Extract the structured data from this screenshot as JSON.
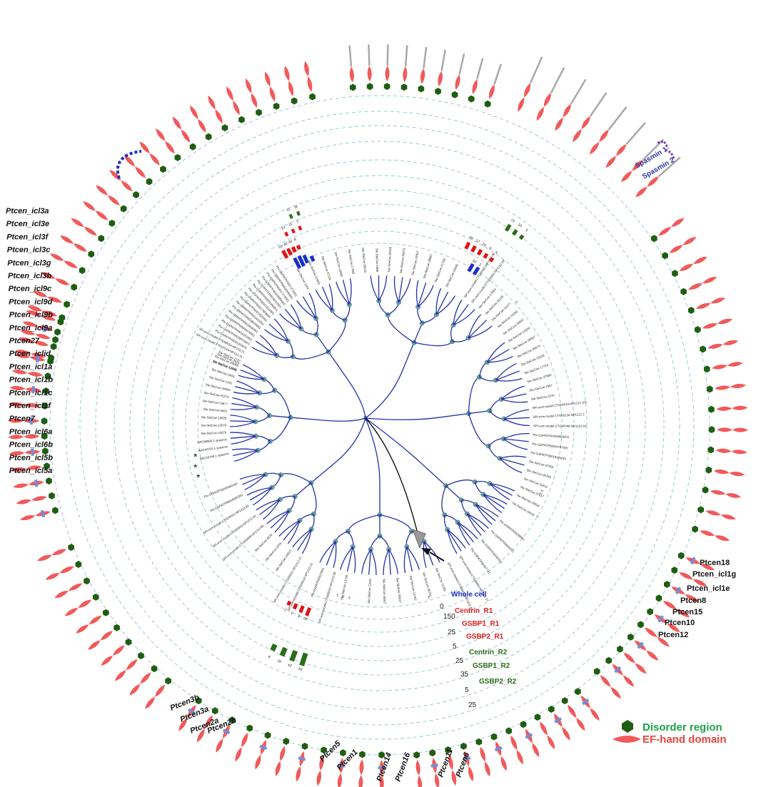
{
  "colors": {
    "tree": "#2230a8",
    "node": "#6aa3a0",
    "ef_hand": "#f15a5a",
    "disorder": "#1f5e12",
    "other_domain": "#6f8fdc",
    "track_blue": "#1c2ec9",
    "track_red": "#e01515",
    "track_green": "#2a6e18",
    "ring": "#8bb8c9",
    "label_green": "#2a8a1a",
    "label_red": "#e01c1c"
  },
  "track_labels": [
    {
      "text": "Whole cell",
      "color": "#1c2ec9"
    },
    {
      "text": "Centrin_R1",
      "color": "#e01c1c"
    },
    {
      "text": "GSBP1_R1",
      "color": "#e01c1c"
    },
    {
      "text": "GSBP2_R1",
      "color": "#e01c1c"
    },
    {
      "text": "Centrin_R2",
      "color": "#2a6e18"
    },
    {
      "text": "GSBP1_R2",
      "color": "#2a6e18"
    },
    {
      "text": "GSBP2_R2",
      "color": "#2a6e18"
    }
  ],
  "scale_numbers": [
    "0",
    "150",
    "25",
    "5",
    "25",
    "35",
    "5",
    "25"
  ],
  "gene_labels_left": [
    "Ptcen_icl3a",
    "Ptcen_icl3e",
    "Ptcen_icl3f",
    "Ptcen_icl3c",
    "Ptcen_icl3g",
    "Ptcen_icl3b",
    "Ptcen_icl9c",
    "Ptcen_icl9d",
    "Ptcen_icl9b",
    "Ptcen_icl9a",
    "Ptcen27",
    "Ptcen_iclid",
    "Ptcen_icl1a",
    "Ptcen_icl1b",
    "Ptcen_icl1c",
    "Ptcen_icl1f",
    "Ptcen7",
    "Ptcen_icl6a",
    "Ptcen_icl6b",
    "Ptcen_icl5b",
    "Ptcen_icl5a"
  ],
  "gene_labels_right": [
    "Ptcen18",
    "Ptcen_icl1g",
    "Ptcen_icl1e",
    "Ptcen8",
    "Ptcen15",
    "Ptcen10",
    "Ptcen12"
  ],
  "gene_labels_bottom": [
    "Ptcen3b",
    "Ptcen3a",
    "Ptcen2a",
    "Ptcen2b",
    "Ptcen5",
    "Ptcen1",
    "Ptcen14",
    "Ptcen16",
    "Ptcen11",
    "Ptcen6"
  ],
  "spasmin_labels": [
    "Spasmin 1",
    "Spasmin 2"
  ],
  "legend": [
    {
      "label": "Disorder region",
      "color": "#1aa34a",
      "shape": "hexagon"
    },
    {
      "label": "EF-hand domain",
      "color": "#e8453c",
      "shape": "spindle"
    }
  ],
  "track_values": {
    "whole_cell_top": [
      "1",
      "1"
    ],
    "centrin_r1_top": [
      "50",
      "40",
      "30",
      "8"
    ],
    "gsbp1_r1_top": [
      "12",
      "11",
      "2"
    ],
    "gsbp2_r1_top": [
      "2",
      "2"
    ],
    "centrin_r2_top": [
      "11",
      "11"
    ],
    "right_red": [
      "49",
      "37",
      "10",
      "8",
      "4"
    ],
    "right_green": [
      "13",
      "10",
      "5"
    ],
    "right_blue": [
      "30",
      "2"
    ],
    "bottom_red": [
      "20",
      "5",
      "3",
      "2"
    ],
    "bottom_green": [
      "34",
      "24",
      "20",
      "8"
    ],
    "bottom_numbers": [
      "2",
      "2",
      "1"
    ],
    "right_misc": [
      "1",
      "1",
      "3"
    ]
  },
  "leaf_labels": {
    "top_left": [
      "Ste-SteCoe-19998",
      "Ste-SteCoe-29066",
      "Ste-SteCoe-1737",
      "SPI-evm.model.CTG00019-NP123.16",
      "SPI-evm.model.CTG00034-NP123.21",
      "Ptx-GSPATP00021200001",
      "Ptx-GSPATP00028370001",
      "Ptx-GSPATP00016252001",
      "Ptx-GSPATP00009470001",
      "Ptx-GSPATP00020646001",
      "Ptx-GSPATP00028520001",
      "Ptx-GSPATP00022415001",
      "Ptx-GSPATP00001820001",
      "Ptx-GSPATP00017893001",
      "Ptx-GSPATP00022915001",
      "Ptx-GSPATP00026359001",
      "Ptx-GSPATP00028242001",
      "Ptx-GSPATP00015680001",
      "Ptx-GSPATP00017275001",
      "Ptx-GSPATP00032440001",
      "Ptx-GSPATP00007273001"
    ],
    "left": [
      "BAC43749.1 spasmin",
      "BAC43750.1 spasmin",
      "AAO99900.1 spasmin",
      "Ste-SteCoe-21876",
      "Ste-SteCoe-12679",
      "Ste-SteCoe-10828",
      "Ste-SteCoe-4093",
      "Ste-SteCoe-14677",
      "Ste-SteCoe-25273",
      "Ste-SteCoe-34659",
      "Ste-SteCoe-1431",
      "Ste-SteCoe-2403",
      "Ste-SteCoe-14048",
      "Ste-SteCoe-2919"
    ],
    "bottom": [
      "Ste-SteCoe-13738",
      "SPI-evm.model.CTG00023-NP1212.58",
      "Ptx-GSPATP00017801",
      "SPI-evm.model.CTG00013-NP1212.21",
      "SPI-evm.model.CTG00021-NP1212.27",
      "Ste-SteCoe-25813",
      "Ste-SteCoe-2019",
      "Ste-SteCoe-4228",
      "SPI-evm.model.CTG00008-NP1212.89",
      "SPI-evm.model.CTG00020-NP1212.45",
      "SPI-evm.model.CTG00001-NP1212.82",
      "Ptx-GSPATP00018081001",
      "Ptx-GSPATP00006981001"
    ],
    "top": [
      "Ste-SteCoe-2101",
      "Ste-SteCoe-22463",
      "Ste-SteCoe-37116",
      "Ste-SteCoe-13093",
      "Ste-SteCoe-17565",
      "Ste-SteCoe-38118",
      "Ste-SteCoe-1998",
      "Ste-SteCoe-30245",
      "Ste-SteCoe-30373",
      "Ste-SteCoe-32927",
      "Ste-SteCoe-38887",
      "Ste-SteCoe-21768",
      "Ste-SteCoe-16640"
    ],
    "right": [
      "SPI-evm.model.CTG00052-NP1212.36",
      "SPI-evm.model.CTG00054-NP1212.39",
      "Ste-SteCoe-17853",
      "Ste-SteCoe-26106",
      "Ste-SteCoe-21077",
      "Ste-SteCoe-14292",
      "Ste-SteCoe-30537",
      "Ste-SteCoe-13109",
      "Ste-SteCoe-36927",
      "Ste-SteCoe-30675",
      "Ste-SteCoe-13329",
      "Ste-SteCoe-17724",
      "Ste-SteCoe-37982",
      "Ste-SteCoe-7857",
      "Ste-SteCoe-1570",
      "SPI-evm.model.CTG00010-NP1212.102",
      "SPI-evm.model.CTG00130-NP1212.2",
      "SPI-evm.model.CTG00048-NP1212.91",
      "Ptx-GSPATP00038880001",
      "Ptx-GSPATP00024787001",
      "Ptx-GSPATP00018420001",
      "Ste-SteCoe-27025",
      "Ste-SteCoe-30783",
      "Ste-SteCoe-32612",
      "Ste-SteCoe-37617",
      "Ste-SteCoe-16504",
      "Ste-SteCoe-34102"
    ],
    "bottom_right": [
      "Ptx-GSPATP00039801",
      "Ptx-GSPATP00006221",
      "Ptx-GSPATP00030311",
      "Ptx-GSPATP00007741",
      "SPI-evm.model.CTG00064-NP1212.27",
      "SPI-evm.model.CTG00019-NP1212.42",
      "Ste-SteCoe-11361",
      "Ste-SteCoe-36751",
      "Ste-SteCoe-12762",
      "Ste-SteCoe-35817",
      "Ste-SteCoe-16927",
      "Ste-SteCoe-11601"
    ]
  }
}
